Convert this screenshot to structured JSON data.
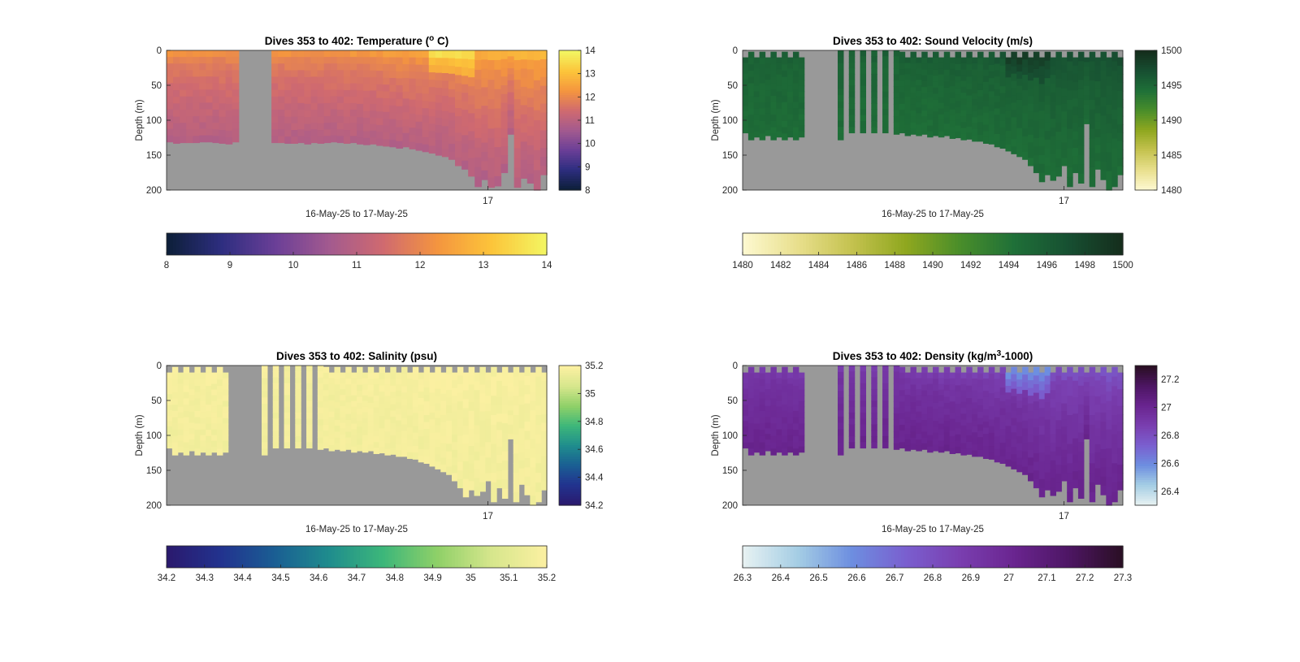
{
  "figure": {
    "background": "#ffffff",
    "gap_color": "#999999"
  },
  "chart_data": [
    {
      "type": "heatmap",
      "title": "Dives 353 to 402: Temperature (",
      "title_super": "o",
      "title_tail": " C)",
      "ylabel": "Depth (m)",
      "xlabel": "16-May-25 to 17-May-25",
      "x_ticks": [
        "17"
      ],
      "ylim": [
        200,
        0
      ],
      "y_ticks": [
        "0",
        "50",
        "100",
        "150",
        "200"
      ],
      "grid": false,
      "colormap": [
        "#0d1f3a",
        "#2e2e80",
        "#6b3f97",
        "#a35a8f",
        "#d06a6f",
        "#f4953f",
        "#fcc43a",
        "#f3f561"
      ],
      "clim": [
        8,
        14
      ],
      "colorbar_ticks": [
        "8",
        "9",
        "10",
        "11",
        "12",
        "13",
        "14"
      ],
      "side_colorbar_ticks": [
        "14",
        "13",
        "12",
        "11",
        "10",
        "9",
        "8"
      ],
      "field": {
        "surface_value": 12.2,
        "deep_value": 10.9,
        "late_surface_value": 12.9,
        "warm_patch_value": 13.6
      },
      "bottom_depths": [
        131,
        133,
        132,
        132,
        132,
        131,
        131,
        132,
        133,
        134,
        131,
        0,
        0,
        0,
        0,
        0,
        132,
        132,
        133,
        133,
        132,
        134,
        132,
        133,
        132,
        131,
        132,
        133,
        132,
        134,
        135,
        134,
        136,
        137,
        138,
        140,
        138,
        141,
        143,
        145,
        147,
        150,
        152,
        156,
        165,
        170,
        180,
        195,
        185,
        196,
        194,
        175,
        120,
        196,
        183,
        190,
        200,
        178
      ],
      "top_gaps": []
    },
    {
      "type": "heatmap",
      "title": "Dives 353 to 402: Sound Velocity (m/s)",
      "ylabel": "Depth (m)",
      "xlabel": "16-May-25 to 17-May-25",
      "x_ticks": [
        "17"
      ],
      "ylim": [
        200,
        0
      ],
      "y_ticks": [
        "0",
        "50",
        "100",
        "150",
        "200"
      ],
      "grid": false,
      "colormap": [
        "#fdf8cf",
        "#e8df8c",
        "#c4c24f",
        "#8fa71f",
        "#4a8e2a",
        "#1f7038",
        "#175032",
        "#152e1d"
      ],
      "clim": [
        1480,
        1500
      ],
      "colorbar_ticks": [
        "1480",
        "1482",
        "1484",
        "1486",
        "1488",
        "1490",
        "1492",
        "1494",
        "1496",
        "1498",
        "1500"
      ],
      "side_colorbar_ticks": [
        "1500",
        "1495",
        "1490",
        "1485",
        "1480"
      ],
      "field": {
        "surface_value": 1495.8,
        "deep_value": 1494.6,
        "late_surface_value": 1497.4,
        "warm_patch_value": 1498.6
      },
      "bottom_depths": [
        118,
        128,
        124,
        128,
        122,
        128,
        124,
        128,
        124,
        128,
        124,
        0,
        0,
        0,
        0,
        0,
        0,
        128,
        0,
        118,
        0,
        118,
        0,
        118,
        0,
        118,
        0,
        120,
        118,
        122,
        120,
        122,
        120,
        124,
        122,
        124,
        122,
        126,
        125,
        128,
        127,
        130,
        130,
        133,
        134,
        138,
        140,
        144,
        148,
        152,
        156,
        165,
        175,
        188,
        178,
        186,
        180,
        165,
        195,
        175,
        190,
        105,
        195,
        170,
        185,
        200,
        195,
        178
      ],
      "top_gaps": [
        10,
        2,
        10,
        2,
        10,
        2,
        10,
        2,
        10,
        2,
        10,
        0,
        0,
        0,
        0,
        0,
        0,
        0,
        0,
        0,
        0,
        0,
        0,
        0,
        0,
        0,
        0,
        0,
        2,
        10,
        2,
        10,
        2,
        10,
        2,
        10,
        2,
        10,
        2,
        10,
        2,
        10,
        2,
        10,
        2,
        10,
        2,
        10,
        2,
        10,
        2,
        10,
        2,
        10,
        2,
        10,
        2,
        10,
        2,
        10,
        2,
        10,
        2,
        10,
        2,
        10,
        2,
        10
      ]
    },
    {
      "type": "heatmap",
      "title": "Dives 353 to 402: Salinity (psu)",
      "ylabel": "Depth (m)",
      "xlabel": "16-May-25 to 17-May-25",
      "x_ticks": [
        "17"
      ],
      "ylim": [
        200,
        0
      ],
      "y_ticks": [
        "0",
        "50",
        "100",
        "150",
        "200"
      ],
      "grid": false,
      "colormap": [
        "#2a1a6e",
        "#22338f",
        "#1a5f93",
        "#1f8d8d",
        "#3db77a",
        "#8fd068",
        "#d6e68c",
        "#fbf0a1"
      ],
      "clim": [
        34.2,
        35.2
      ],
      "colorbar_ticks": [
        "34.2",
        "34.3",
        "34.4",
        "34.5",
        "34.6",
        "34.7",
        "34.8",
        "34.9",
        "35",
        "35.1",
        "35.2"
      ],
      "side_colorbar_ticks": [
        "35.2",
        "35",
        "34.8",
        "34.6",
        "34.4",
        "34.2"
      ],
      "field": {
        "surface_value": 35.18,
        "deep_value": 35.17,
        "late_surface_value": 35.19,
        "warm_patch_value": 35.2
      },
      "bottom_depths": [
        118,
        128,
        124,
        128,
        122,
        128,
        124,
        128,
        124,
        128,
        124,
        0,
        0,
        0,
        0,
        0,
        0,
        128,
        0,
        118,
        0,
        118,
        0,
        118,
        0,
        118,
        0,
        120,
        118,
        122,
        120,
        122,
        120,
        124,
        122,
        124,
        122,
        126,
        125,
        128,
        127,
        130,
        130,
        133,
        134,
        138,
        140,
        144,
        148,
        152,
        156,
        165,
        175,
        188,
        178,
        186,
        180,
        165,
        195,
        175,
        190,
        105,
        195,
        170,
        185,
        200,
        195,
        178
      ],
      "top_gaps": [
        10,
        2,
        10,
        2,
        10,
        2,
        10,
        2,
        10,
        2,
        10,
        0,
        0,
        0,
        0,
        0,
        0,
        0,
        0,
        0,
        0,
        0,
        0,
        0,
        0,
        0,
        0,
        0,
        2,
        10,
        2,
        10,
        2,
        10,
        2,
        10,
        2,
        10,
        2,
        10,
        2,
        10,
        2,
        10,
        2,
        10,
        2,
        10,
        2,
        10,
        2,
        10,
        2,
        10,
        2,
        10,
        2,
        10,
        2,
        10,
        2,
        10,
        2,
        10,
        2,
        10,
        2,
        10
      ]
    },
    {
      "type": "heatmap",
      "title": "Dives 353 to 402: Density (kg/m",
      "title_super": "3",
      "title_tail": "-1000)",
      "ylabel": "Depth (m)",
      "xlabel": "16-May-25 to 17-May-25",
      "x_ticks": [
        "17"
      ],
      "ylim": [
        200,
        0
      ],
      "y_ticks": [
        "0",
        "50",
        "100",
        "150",
        "200"
      ],
      "grid": false,
      "colormap": [
        "#e6f1f2",
        "#a4cde4",
        "#6d8ee0",
        "#7a5fcf",
        "#7a3fb0",
        "#6a2590",
        "#4e1665",
        "#2b0f25"
      ],
      "clim": [
        26.3,
        27.3
      ],
      "colorbar_ticks": [
        "26.3",
        "26.4",
        "26.5",
        "26.6",
        "26.7",
        "26.8",
        "26.9",
        "27",
        "27.1",
        "27.2",
        "27.3"
      ],
      "side_colorbar_ticks": [
        "27.2",
        "27",
        "26.8",
        "26.6",
        "26.4"
      ],
      "field": {
        "surface_value": 26.9,
        "deep_value": 27.02,
        "late_surface_value": 26.78,
        "warm_patch_value": 26.6
      },
      "bottom_depths": [
        118,
        128,
        124,
        128,
        122,
        128,
        124,
        128,
        124,
        128,
        124,
        0,
        0,
        0,
        0,
        0,
        0,
        128,
        0,
        118,
        0,
        118,
        0,
        118,
        0,
        118,
        0,
        120,
        118,
        122,
        120,
        122,
        120,
        124,
        122,
        124,
        122,
        126,
        125,
        128,
        127,
        130,
        130,
        133,
        134,
        138,
        140,
        144,
        148,
        152,
        156,
        165,
        175,
        188,
        178,
        186,
        180,
        165,
        195,
        175,
        190,
        105,
        195,
        170,
        185,
        200,
        195,
        178
      ],
      "top_gaps": [
        10,
        2,
        10,
        2,
        10,
        2,
        10,
        2,
        10,
        2,
        10,
        0,
        0,
        0,
        0,
        0,
        0,
        0,
        0,
        0,
        0,
        0,
        0,
        0,
        0,
        0,
        0,
        0,
        2,
        10,
        2,
        10,
        2,
        10,
        2,
        10,
        2,
        10,
        2,
        10,
        2,
        10,
        2,
        10,
        2,
        10,
        2,
        10,
        2,
        10,
        2,
        10,
        2,
        10,
        2,
        10,
        2,
        10,
        2,
        10,
        2,
        10,
        2,
        10,
        2,
        10,
        2,
        10
      ]
    }
  ]
}
